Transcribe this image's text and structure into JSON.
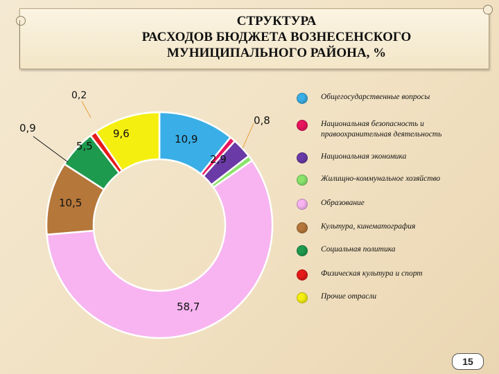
{
  "title_lines": [
    "СТРУКТУРА",
    "РАСХОДОВ БЮДЖЕТА ВОЗНЕСЕНСКОГО",
    "МУНИЦИПАЛЬНОГО РАЙОНА, %"
  ],
  "page_number": "15",
  "chart_data": {
    "type": "pie",
    "title": "СТРУКТУРА РАСХОДОВ БЮДЖЕТА ВОЗНЕСЕНСКОГО МУНИЦИПАЛЬНОГО РАЙОНА, %",
    "legend_position": "right",
    "categories": [
      "Общегосударственные вопросы",
      "Национальная безопасность и правоохранительная деятельность",
      "Национальная экономика",
      "Жилищно-коммунальное хозяйство",
      "Образование",
      "Культура, кинематография",
      "Социальная политика",
      "Физическая культура и спорт",
      "Прочие отрасли"
    ],
    "values": [
      10.9,
      0.8,
      2.9,
      0.8,
      58.7,
      10.5,
      5.5,
      0.9,
      9.6
    ],
    "data_labels": [
      "10,9",
      "0,8",
      "2,9",
      "",
      "58,7",
      "10,5",
      "5,5",
      "0,9",
      "9,6"
    ],
    "extra_label": "0,2",
    "colors": [
      "#3aaee6",
      "#e8145e",
      "#6a3aa6",
      "#8ae46c",
      "#f7b4f0",
      "#b5773a",
      "#1e9a4e",
      "#e61a1a",
      "#f5ef10"
    ]
  }
}
